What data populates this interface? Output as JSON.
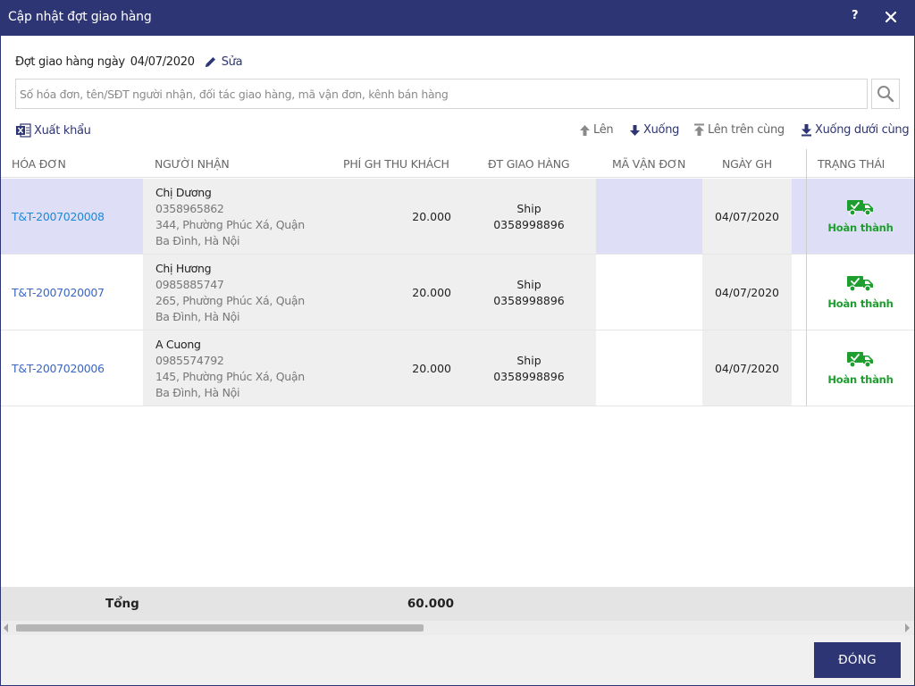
{
  "window": {
    "title": "Cập nhật đợt giao hàng",
    "help": "?",
    "close": "✕"
  },
  "batch": {
    "label": "Đợt giao hàng ngày",
    "date": "04/07/2020",
    "edit_label": "Sửa"
  },
  "search": {
    "placeholder": "Số hóa đơn, tên/SĐT người nhận, đối tác giao hàng, mã vận đơn, kênh bán hàng"
  },
  "toolbar": {
    "export_label": "Xuất khẩu",
    "up_label": "Lên",
    "down_label": "Xuống",
    "top_label": "Lên trên cùng",
    "bottom_label": "Xuống dưới cùng"
  },
  "table": {
    "columns": [
      "HÓA ĐƠN",
      "NGƯỜI NHẬN",
      "PHÍ GH THU KHÁCH",
      "ĐT GIAO HÀNG",
      "MÃ VẬN ĐƠN",
      "NGÀY GH",
      "TRẠNG THÁI"
    ],
    "rows": [
      {
        "invoice": "T&T-2007020008",
        "name": "Chị Dương",
        "phone": "0358965862",
        "address1": "344, Phường Phúc Xá, Quận",
        "address2": "Ba Đình, Hà Nội",
        "fee": "20.000",
        "partner": "Ship",
        "partner_phone": "0358998896",
        "tracking": "",
        "date": "04/07/2020",
        "status": "Hoàn thành"
      },
      {
        "invoice": "T&T-2007020007",
        "name": "Chị Hương",
        "phone": "0985885747",
        "address1": "265, Phường Phúc Xá, Quận",
        "address2": "Ba Đình, Hà Nội",
        "fee": "20.000",
        "partner": "Ship",
        "partner_phone": "0358998896",
        "tracking": "",
        "date": "04/07/2020",
        "status": "Hoàn thành"
      },
      {
        "invoice": "T&T-2007020006",
        "name": "A Cuong",
        "phone": "0985574792",
        "address1": "145, Phường Phúc Xá, Quận",
        "address2": "Ba Đình, Hà Nội",
        "fee": "20.000",
        "partner": "Ship",
        "partner_phone": "0358998896",
        "tracking": "",
        "date": "04/07/2020",
        "status": "Hoàn thành"
      }
    ]
  },
  "footer": {
    "total_label": "Tổng",
    "total_value": "60.000",
    "close_button": "ĐÓNG"
  },
  "icons": {
    "edit": "pencil-icon",
    "search": "search-icon",
    "export": "excel-icon",
    "up": "arrow-up-icon",
    "down": "arrow-down-icon",
    "top": "arrow-top-icon",
    "bottom": "arrow-bottom-icon",
    "status": "delivery-truck-icon"
  },
  "colors": {
    "header": "#2e3575",
    "selected_row": "#dedff7",
    "invoice_link": "#3b66c4",
    "status_green": "#1e9e2e"
  }
}
